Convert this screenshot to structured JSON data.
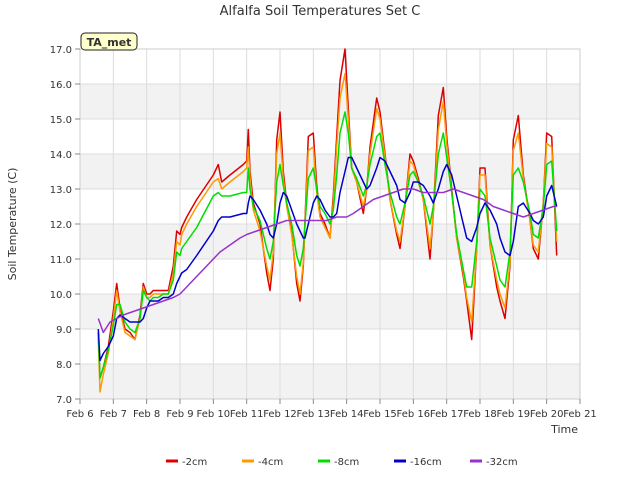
{
  "chart_data": {
    "type": "line",
    "title": "Alfalfa Soil Temperatures Set C",
    "xlabel": "Time",
    "ylabel": "Soil Temperature (C)",
    "annotation": "TA_met",
    "xlim": [
      6,
      21
    ],
    "ylim": [
      7.0,
      17.0
    ],
    "x_ticks": [
      6,
      7,
      8,
      9,
      10,
      11,
      12,
      13,
      14,
      15,
      16,
      17,
      18,
      19,
      20,
      21
    ],
    "x_tick_labels": [
      "Feb 6",
      "Feb 7",
      "Feb 8",
      "Feb 9",
      "Feb 10",
      "Feb 11",
      "Feb 12",
      "Feb 13",
      "Feb 14",
      "Feb 15",
      "Feb 16",
      "Feb 17",
      "Feb 18",
      "Feb 19",
      "Feb 20",
      "Feb 21"
    ],
    "y_ticks": [
      7.0,
      8.0,
      9.0,
      10.0,
      11.0,
      12.0,
      13.0,
      14.0,
      15.0,
      16.0,
      17.0
    ],
    "y_tick_labels": [
      "7.0",
      "8.0",
      "9.0",
      "10.0",
      "11.0",
      "12.0",
      "13.0",
      "14.0",
      "15.0",
      "16.0",
      "17.0"
    ],
    "grid": true,
    "legend_position": "bottom",
    "series": [
      {
        "name": "-2cm",
        "color": "#dd0000",
        "x": [
          6.55,
          6.6,
          6.7,
          6.85,
          7.0,
          7.1,
          7.2,
          7.35,
          7.5,
          7.65,
          7.8,
          7.9,
          8.0,
          8.1,
          8.2,
          8.35,
          8.5,
          8.65,
          8.8,
          8.9,
          9.0,
          9.05,
          9.2,
          9.5,
          10.0,
          10.15,
          10.25,
          10.5,
          10.9,
          11.0,
          11.05,
          11.1,
          11.2,
          11.4,
          11.6,
          11.7,
          11.8,
          11.9,
          12.0,
          12.1,
          12.2,
          12.35,
          12.5,
          12.6,
          12.7,
          12.75,
          12.85,
          13.0,
          13.1,
          13.2,
          13.35,
          13.5,
          13.6,
          13.7,
          13.8,
          13.95,
          14.05,
          14.15,
          14.3,
          14.5,
          14.6,
          14.7,
          14.9,
          15.0,
          15.15,
          15.3,
          15.5,
          15.6,
          15.75,
          15.9,
          16.0,
          16.15,
          16.3,
          16.5,
          16.6,
          16.75,
          16.9,
          17.0,
          17.15,
          17.3,
          17.5,
          17.6,
          17.75,
          17.9,
          18.0,
          18.15,
          18.3,
          18.5,
          18.6,
          18.75,
          18.9,
          19.0,
          19.15,
          19.3,
          19.5,
          19.6,
          19.75,
          19.9,
          20.0,
          20.15,
          20.3
        ],
        "y": [
          8.9,
          7.6,
          7.9,
          8.5,
          9.5,
          10.3,
          9.6,
          9.0,
          8.9,
          8.7,
          9.4,
          10.3,
          10.0,
          10.0,
          10.1,
          10.1,
          10.1,
          10.1,
          10.8,
          11.8,
          11.7,
          11.9,
          12.2,
          12.7,
          13.4,
          13.7,
          13.2,
          13.4,
          13.7,
          13.8,
          14.7,
          13.5,
          12.6,
          12.0,
          10.6,
          10.1,
          11.0,
          14.4,
          15.2,
          13.5,
          12.6,
          11.8,
          10.3,
          9.8,
          10.8,
          12.1,
          14.5,
          14.6,
          13.1,
          12.3,
          12.0,
          11.6,
          12.8,
          14.5,
          16.1,
          17.0,
          15.3,
          13.6,
          13.2,
          12.3,
          13.0,
          14.2,
          15.6,
          15.2,
          14.0,
          12.7,
          11.7,
          11.3,
          12.5,
          14.0,
          13.8,
          13.3,
          12.7,
          11.0,
          12.3,
          15.1,
          15.9,
          14.5,
          13.0,
          11.6,
          10.5,
          9.8,
          8.7,
          11.3,
          13.6,
          13.6,
          11.4,
          10.2,
          9.8,
          9.3,
          10.8,
          14.4,
          15.1,
          13.4,
          12.1,
          11.3,
          11.0,
          12.6,
          14.6,
          14.5,
          11.1
        ]
      },
      {
        "name": "-4cm",
        "color": "#ff9900",
        "x": [
          6.55,
          6.6,
          6.7,
          6.85,
          7.0,
          7.1,
          7.2,
          7.35,
          7.5,
          7.65,
          7.8,
          7.9,
          8.0,
          8.1,
          8.2,
          8.35,
          8.5,
          8.65,
          8.8,
          8.9,
          9.0,
          9.05,
          9.2,
          9.5,
          10.0,
          10.15,
          10.25,
          10.5,
          10.9,
          11.0,
          11.05,
          11.1,
          11.2,
          11.4,
          11.6,
          11.7,
          11.8,
          11.9,
          12.0,
          12.1,
          12.2,
          12.35,
          12.5,
          12.6,
          12.7,
          12.75,
          12.85,
          13.0,
          13.1,
          13.2,
          13.35,
          13.5,
          13.6,
          13.7,
          13.8,
          13.95,
          14.05,
          14.15,
          14.3,
          14.5,
          14.6,
          14.7,
          14.9,
          15.0,
          15.15,
          15.3,
          15.5,
          15.6,
          15.75,
          15.9,
          16.0,
          16.15,
          16.3,
          16.5,
          16.6,
          16.75,
          16.9,
          17.0,
          17.15,
          17.3,
          17.5,
          17.6,
          17.75,
          17.9,
          18.0,
          18.15,
          18.3,
          18.5,
          18.6,
          18.75,
          18.9,
          19.0,
          19.15,
          19.3,
          19.5,
          19.6,
          19.75,
          19.9,
          20.0,
          20.15,
          20.3
        ],
        "y": [
          8.7,
          7.2,
          7.7,
          8.3,
          9.3,
          10.1,
          9.5,
          8.9,
          8.8,
          8.7,
          9.3,
          10.2,
          9.9,
          9.9,
          10.0,
          10.0,
          10.0,
          10.0,
          10.6,
          11.5,
          11.4,
          11.7,
          12.0,
          12.5,
          13.2,
          13.3,
          13.0,
          13.2,
          13.5,
          13.6,
          14.2,
          13.3,
          12.4,
          11.8,
          10.8,
          10.4,
          11.2,
          14.0,
          14.6,
          13.3,
          12.5,
          11.7,
          10.5,
          10.0,
          10.9,
          12.0,
          14.1,
          14.2,
          12.9,
          12.2,
          11.9,
          11.6,
          12.6,
          14.2,
          15.6,
          16.3,
          15.0,
          13.6,
          13.2,
          12.5,
          13.0,
          14.0,
          15.3,
          15.0,
          13.9,
          12.7,
          11.8,
          11.5,
          12.5,
          13.8,
          13.7,
          13.2,
          12.7,
          11.3,
          12.3,
          14.7,
          15.5,
          14.3,
          12.9,
          11.6,
          10.6,
          9.9,
          9.2,
          11.3,
          13.4,
          13.4,
          11.4,
          10.4,
          10.0,
          9.6,
          10.9,
          14.1,
          14.6,
          13.3,
          12.1,
          11.4,
          11.2,
          12.6,
          14.3,
          14.2,
          11.5
        ]
      },
      {
        "name": "-8cm",
        "color": "#00dd00",
        "x": [
          6.55,
          6.6,
          6.7,
          6.85,
          7.0,
          7.1,
          7.2,
          7.35,
          7.5,
          7.65,
          7.8,
          7.9,
          8.0,
          8.1,
          8.2,
          8.35,
          8.5,
          8.65,
          8.8,
          8.9,
          9.0,
          9.05,
          9.2,
          9.5,
          10.0,
          10.15,
          10.25,
          10.5,
          10.9,
          11.0,
          11.05,
          11.1,
          11.2,
          11.4,
          11.6,
          11.7,
          11.8,
          11.9,
          12.0,
          12.1,
          12.2,
          12.35,
          12.5,
          12.6,
          12.7,
          12.75,
          12.85,
          13.0,
          13.1,
          13.2,
          13.35,
          13.5,
          13.6,
          13.7,
          13.8,
          13.95,
          14.05,
          14.15,
          14.3,
          14.5,
          14.6,
          14.7,
          14.9,
          15.0,
          15.15,
          15.3,
          15.5,
          15.6,
          15.75,
          15.9,
          16.0,
          16.15,
          16.3,
          16.5,
          16.6,
          16.75,
          16.9,
          17.0,
          17.15,
          17.3,
          17.5,
          17.6,
          17.75,
          17.9,
          18.0,
          18.15,
          18.3,
          18.5,
          18.6,
          18.75,
          18.9,
          19.0,
          19.15,
          19.3,
          19.5,
          19.6,
          19.75,
          19.9,
          20.0,
          20.15,
          20.3
        ],
        "y": [
          8.9,
          7.6,
          7.9,
          8.4,
          9.1,
          9.7,
          9.7,
          9.2,
          9.0,
          8.9,
          9.3,
          10.1,
          9.9,
          9.8,
          9.9,
          9.9,
          10.0,
          10.0,
          10.4,
          11.2,
          11.1,
          11.3,
          11.5,
          11.9,
          12.8,
          12.9,
          12.8,
          12.8,
          12.9,
          12.9,
          13.6,
          13.0,
          12.5,
          12.1,
          11.3,
          11.0,
          11.5,
          13.2,
          13.7,
          13.1,
          12.6,
          12.0,
          11.1,
          10.8,
          11.3,
          12.0,
          13.3,
          13.6,
          13.0,
          12.5,
          12.3,
          12.0,
          12.4,
          13.4,
          14.6,
          15.2,
          14.6,
          13.6,
          13.3,
          12.8,
          13.1,
          13.7,
          14.5,
          14.6,
          13.7,
          12.9,
          12.2,
          12.0,
          12.6,
          13.4,
          13.5,
          13.2,
          12.8,
          12.0,
          12.5,
          14.0,
          14.6,
          13.9,
          12.9,
          11.7,
          10.7,
          10.2,
          10.2,
          11.5,
          13.0,
          12.8,
          11.6,
          10.8,
          10.4,
          10.2,
          11.2,
          13.4,
          13.6,
          13.2,
          12.3,
          11.7,
          11.6,
          12.5,
          13.7,
          13.8,
          11.8
        ]
      },
      {
        "name": "-16cm",
        "color": "#0000cc",
        "x": [
          6.55,
          6.6,
          6.7,
          6.85,
          7.0,
          7.1,
          7.2,
          7.35,
          7.5,
          7.65,
          7.8,
          7.9,
          8.0,
          8.1,
          8.2,
          8.35,
          8.5,
          8.65,
          8.8,
          8.9,
          9.0,
          9.05,
          9.2,
          9.5,
          10.0,
          10.15,
          10.25,
          10.5,
          10.9,
          11.0,
          11.05,
          11.1,
          11.2,
          11.4,
          11.6,
          11.7,
          11.8,
          11.9,
          12.0,
          12.1,
          12.2,
          12.35,
          12.5,
          12.6,
          12.7,
          12.75,
          12.85,
          13.0,
          13.1,
          13.2,
          13.35,
          13.5,
          13.6,
          13.7,
          13.8,
          13.95,
          14.05,
          14.15,
          14.3,
          14.5,
          14.6,
          14.7,
          14.9,
          15.0,
          15.15,
          15.3,
          15.5,
          15.6,
          15.75,
          15.9,
          16.0,
          16.15,
          16.3,
          16.5,
          16.6,
          16.75,
          16.9,
          17.0,
          17.15,
          17.3,
          17.5,
          17.6,
          17.75,
          17.9,
          18.0,
          18.15,
          18.3,
          18.5,
          18.6,
          18.75,
          18.9,
          19.0,
          19.15,
          19.3,
          19.5,
          19.6,
          19.75,
          19.9,
          20.0,
          20.15,
          20.3
        ],
        "y": [
          9.0,
          8.1,
          8.3,
          8.5,
          8.8,
          9.3,
          9.4,
          9.3,
          9.2,
          9.2,
          9.2,
          9.3,
          9.6,
          9.8,
          9.8,
          9.8,
          9.9,
          9.9,
          10.0,
          10.3,
          10.5,
          10.6,
          10.7,
          11.1,
          11.8,
          12.1,
          12.2,
          12.2,
          12.3,
          12.3,
          12.6,
          12.8,
          12.7,
          12.4,
          12.0,
          11.7,
          11.6,
          12.0,
          12.6,
          12.9,
          12.8,
          12.4,
          12.0,
          11.8,
          11.6,
          11.6,
          12.0,
          12.6,
          12.8,
          12.7,
          12.4,
          12.2,
          12.2,
          12.3,
          12.9,
          13.5,
          13.9,
          13.9,
          13.6,
          13.2,
          13.0,
          13.1,
          13.6,
          13.9,
          13.8,
          13.5,
          13.1,
          12.7,
          12.6,
          12.9,
          13.2,
          13.2,
          13.1,
          12.8,
          12.6,
          13.0,
          13.5,
          13.7,
          13.4,
          12.8,
          12.0,
          11.6,
          11.5,
          11.9,
          12.3,
          12.6,
          12.4,
          12.0,
          11.6,
          11.2,
          11.1,
          11.5,
          12.5,
          12.6,
          12.3,
          12.1,
          12.0,
          12.2,
          12.8,
          13.1,
          12.5
        ]
      },
      {
        "name": "-32cm",
        "color": "#9933cc",
        "x": [
          6.55,
          6.7,
          6.9,
          7.1,
          7.3,
          7.6,
          7.9,
          8.2,
          8.5,
          8.8,
          9.0,
          9.3,
          9.6,
          9.9,
          10.2,
          10.5,
          10.8,
          11.0,
          11.3,
          11.6,
          11.9,
          12.2,
          12.5,
          12.8,
          13.1,
          13.4,
          13.7,
          14.0,
          14.2,
          14.5,
          14.8,
          15.1,
          15.4,
          15.7,
          16.0,
          16.3,
          16.6,
          16.9,
          17.2,
          17.5,
          17.8,
          18.1,
          18.4,
          18.7,
          19.0,
          19.3,
          19.6,
          19.9,
          20.2,
          20.3
        ],
        "y": [
          9.3,
          8.9,
          9.2,
          9.3,
          9.4,
          9.5,
          9.6,
          9.7,
          9.8,
          9.9,
          10.0,
          10.3,
          10.6,
          10.9,
          11.2,
          11.4,
          11.6,
          11.7,
          11.8,
          11.9,
          12.0,
          12.1,
          12.1,
          12.1,
          12.1,
          12.1,
          12.2,
          12.2,
          12.3,
          12.5,
          12.7,
          12.8,
          12.9,
          13.0,
          13.0,
          12.9,
          12.9,
          12.9,
          13.0,
          12.9,
          12.8,
          12.7,
          12.5,
          12.4,
          12.3,
          12.2,
          12.3,
          12.4,
          12.5,
          12.5
        ]
      }
    ]
  }
}
